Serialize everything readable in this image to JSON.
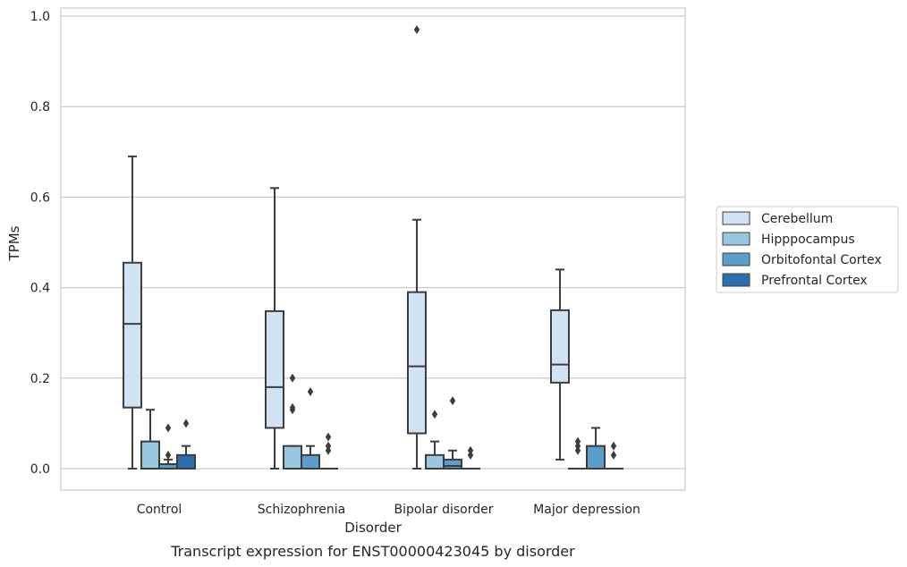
{
  "chart_data": {
    "type": "box",
    "title": "",
    "caption": "Transcript expression for ENST00000423045 by disorder",
    "xlabel": "Disorder",
    "ylabel": "TPMs",
    "ylim": [
      -0.045,
      1.02
    ],
    "yticks": [
      0.0,
      0.2,
      0.4,
      0.6,
      0.8,
      1.0
    ],
    "ytick_labels": [
      "0.0",
      "0.2",
      "0.4",
      "0.6",
      "0.8",
      "1.0"
    ],
    "grid": true,
    "legend_position": "right",
    "categories": [
      "Control",
      "Schizophrenia",
      "Bipolar disorder",
      "Major depression"
    ],
    "series": [
      {
        "name": "Cerebellum",
        "color": "#d1e2f2",
        "boxes": [
          {
            "whislo": 0.0,
            "q1": 0.135,
            "med": 0.32,
            "q3": 0.455,
            "whishi": 0.69,
            "fliers": []
          },
          {
            "whislo": 0.0,
            "q1": 0.09,
            "med": 0.18,
            "q3": 0.348,
            "whishi": 0.62,
            "fliers": []
          },
          {
            "whislo": 0.0,
            "q1": 0.078,
            "med": 0.226,
            "q3": 0.39,
            "whishi": 0.55,
            "fliers": [
              0.97
            ]
          },
          {
            "whislo": 0.02,
            "q1": 0.19,
            "med": 0.23,
            "q3": 0.35,
            "whishi": 0.44,
            "fliers": []
          }
        ]
      },
      {
        "name": "Hipppocampus",
        "color": "#9ac7e0",
        "boxes": [
          {
            "whislo": 0.0,
            "q1": 0.0,
            "med": 0.0,
            "q3": 0.06,
            "whishi": 0.13,
            "fliers": []
          },
          {
            "whislo": 0.0,
            "q1": 0.0,
            "med": 0.0,
            "q3": 0.05,
            "whishi": 0.05,
            "fliers": [
              0.13,
              0.135,
              0.2
            ]
          },
          {
            "whislo": 0.0,
            "q1": 0.0,
            "med": 0.0,
            "q3": 0.03,
            "whishi": 0.06,
            "fliers": [
              0.12
            ]
          },
          {
            "whislo": 0.0,
            "q1": 0.0,
            "med": 0.0,
            "q3": 0.0,
            "whishi": 0.0,
            "fliers": [
              0.04,
              0.05,
              0.06
            ]
          }
        ]
      },
      {
        "name": "Orbitofontal Cortex",
        "color": "#5c9ec9",
        "boxes": [
          {
            "whislo": 0.0,
            "q1": 0.0,
            "med": 0.0,
            "q3": 0.01,
            "whishi": 0.02,
            "fliers": [
              0.03,
              0.09
            ]
          },
          {
            "whislo": 0.0,
            "q1": 0.0,
            "med": 0.0,
            "q3": 0.03,
            "whishi": 0.05,
            "fliers": [
              0.17
            ]
          },
          {
            "whislo": 0.0,
            "q1": 0.0,
            "med": 0.006,
            "q3": 0.02,
            "whishi": 0.04,
            "fliers": [
              0.15
            ]
          },
          {
            "whislo": 0.0,
            "q1": 0.0,
            "med": 0.0,
            "q3": 0.05,
            "whishi": 0.09,
            "fliers": []
          }
        ]
      },
      {
        "name": "Prefrontal Cortex",
        "color": "#2d6fad",
        "boxes": [
          {
            "whislo": 0.0,
            "q1": 0.0,
            "med": 0.0,
            "q3": 0.03,
            "whishi": 0.05,
            "fliers": [
              0.1
            ]
          },
          {
            "whislo": 0.0,
            "q1": 0.0,
            "med": 0.0,
            "q3": 0.0,
            "whishi": 0.0,
            "fliers": [
              0.04,
              0.05,
              0.07
            ]
          },
          {
            "whislo": 0.0,
            "q1": 0.0,
            "med": 0.0,
            "q3": 0.0,
            "whishi": 0.0,
            "fliers": [
              0.03,
              0.04
            ]
          },
          {
            "whislo": 0.0,
            "q1": 0.0,
            "med": 0.0,
            "q3": 0.0,
            "whishi": 0.0,
            "fliers": [
              0.03,
              0.05
            ]
          }
        ]
      }
    ]
  }
}
